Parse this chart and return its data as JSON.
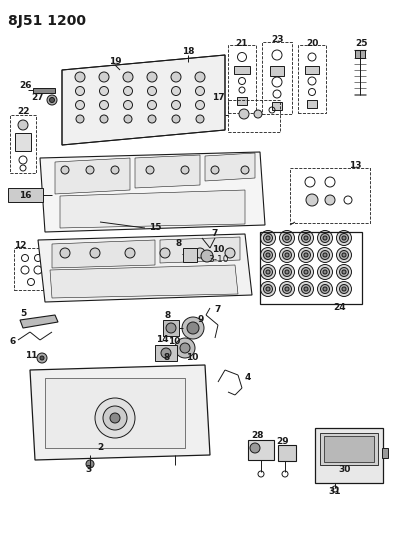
{
  "title": "8J51 1200",
  "bg_color": "#ffffff",
  "line_color": "#1a1a1a",
  "title_fontsize": 10,
  "label_fontsize": 6.5,
  "fig_width": 4.0,
  "fig_height": 5.33,
  "dpi": 100
}
